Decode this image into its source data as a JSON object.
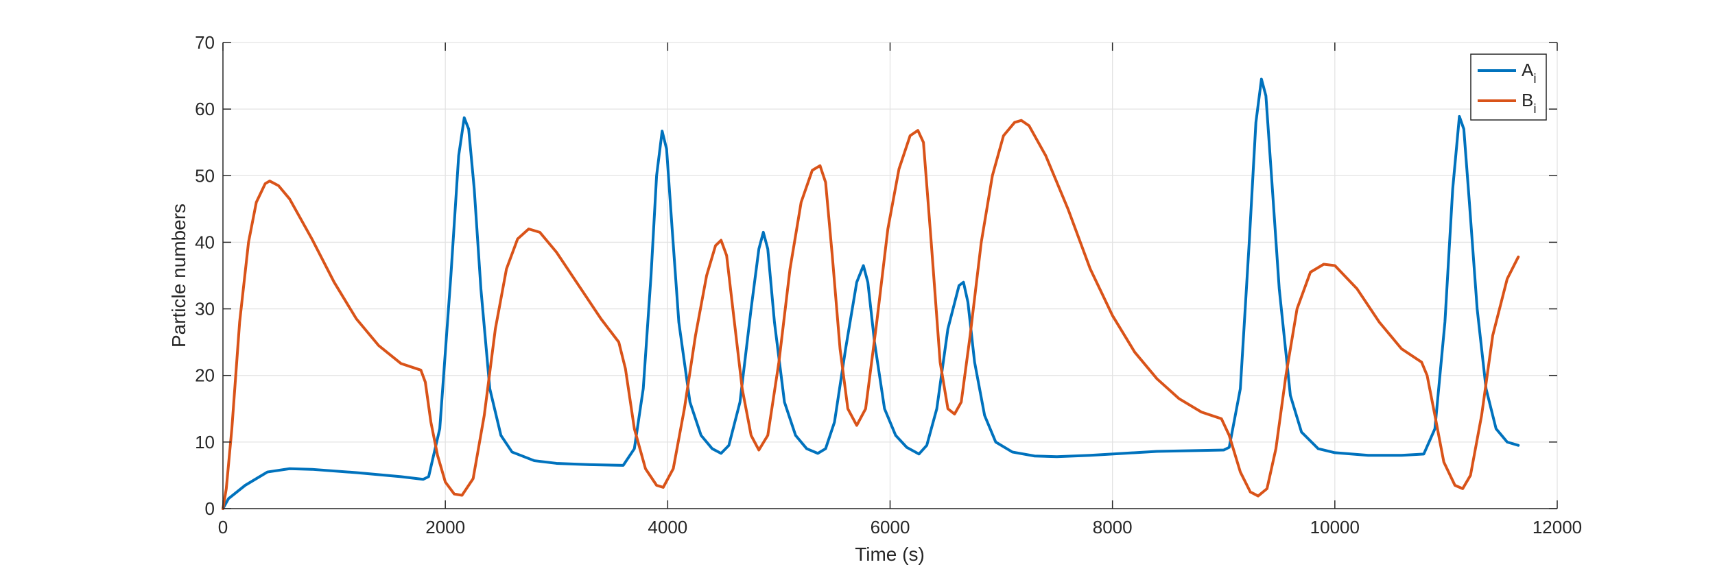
{
  "chart_data": {
    "type": "line",
    "title": "",
    "xlabel": "Time (s)",
    "ylabel": "Particle numbers",
    "xlim": [
      0,
      12000
    ],
    "ylim": [
      0,
      70
    ],
    "xticks": [
      0,
      2000,
      4000,
      6000,
      8000,
      10000,
      12000
    ],
    "yticks": [
      0,
      10,
      20,
      30,
      40,
      50,
      60,
      70
    ],
    "xtick_labels": [
      "0",
      "2000",
      "4000",
      "6000",
      "8000",
      "10000",
      "12000"
    ],
    "ytick_labels": [
      "0",
      "10",
      "20",
      "30",
      "40",
      "50",
      "60",
      "70"
    ],
    "grid": true,
    "legend_position": "top-right",
    "series": [
      {
        "name": "A",
        "name_subscript": "i",
        "color": "#0072BD",
        "points": [
          [
            0,
            0
          ],
          [
            50,
            1.5
          ],
          [
            200,
            3.5
          ],
          [
            400,
            5.5
          ],
          [
            600,
            6
          ],
          [
            800,
            5.9
          ],
          [
            1200,
            5.4
          ],
          [
            1600,
            4.8
          ],
          [
            1800,
            4.4
          ],
          [
            1850,
            4.8
          ],
          [
            1950,
            12
          ],
          [
            2050,
            35
          ],
          [
            2120,
            53
          ],
          [
            2170,
            58.7
          ],
          [
            2210,
            57
          ],
          [
            2260,
            48
          ],
          [
            2320,
            33
          ],
          [
            2400,
            18
          ],
          [
            2500,
            11
          ],
          [
            2600,
            8.5
          ],
          [
            2800,
            7.2
          ],
          [
            3000,
            6.8
          ],
          [
            3300,
            6.6
          ],
          [
            3600,
            6.5
          ],
          [
            3700,
            9
          ],
          [
            3780,
            18
          ],
          [
            3850,
            35
          ],
          [
            3900,
            50
          ],
          [
            3950,
            56.7
          ],
          [
            3990,
            54
          ],
          [
            4040,
            42
          ],
          [
            4100,
            28
          ],
          [
            4200,
            16
          ],
          [
            4300,
            11
          ],
          [
            4400,
            9
          ],
          [
            4480,
            8.3
          ],
          [
            4550,
            9.5
          ],
          [
            4650,
            16
          ],
          [
            4750,
            30
          ],
          [
            4820,
            39
          ],
          [
            4860,
            41.5
          ],
          [
            4900,
            39
          ],
          [
            4960,
            28
          ],
          [
            5050,
            16
          ],
          [
            5150,
            11
          ],
          [
            5250,
            9
          ],
          [
            5350,
            8.3
          ],
          [
            5420,
            9
          ],
          [
            5500,
            13
          ],
          [
            5600,
            24
          ],
          [
            5700,
            34
          ],
          [
            5760,
            36.5
          ],
          [
            5800,
            34
          ],
          [
            5860,
            25
          ],
          [
            5950,
            15
          ],
          [
            6050,
            11
          ],
          [
            6150,
            9.2
          ],
          [
            6260,
            8.2
          ],
          [
            6330,
            9.5
          ],
          [
            6420,
            15
          ],
          [
            6520,
            27
          ],
          [
            6620,
            33.5
          ],
          [
            6660,
            34
          ],
          [
            6700,
            31
          ],
          [
            6760,
            22
          ],
          [
            6850,
            14
          ],
          [
            6950,
            10
          ],
          [
            7100,
            8.5
          ],
          [
            7300,
            7.9
          ],
          [
            7500,
            7.8
          ],
          [
            7800,
            8
          ],
          [
            8100,
            8.3
          ],
          [
            8400,
            8.6
          ],
          [
            8700,
            8.7
          ],
          [
            9000,
            8.8
          ],
          [
            9050,
            9.2
          ],
          [
            9150,
            18
          ],
          [
            9230,
            40
          ],
          [
            9290,
            58
          ],
          [
            9340,
            64.5
          ],
          [
            9380,
            62
          ],
          [
            9430,
            50
          ],
          [
            9500,
            33
          ],
          [
            9600,
            17
          ],
          [
            9700,
            11.5
          ],
          [
            9850,
            9
          ],
          [
            10000,
            8.4
          ],
          [
            10300,
            8
          ],
          [
            10600,
            8
          ],
          [
            10800,
            8.2
          ],
          [
            10900,
            12
          ],
          [
            10990,
            28
          ],
          [
            11060,
            48
          ],
          [
            11120,
            58.9
          ],
          [
            11160,
            57
          ],
          [
            11210,
            46
          ],
          [
            11280,
            30
          ],
          [
            11360,
            18
          ],
          [
            11450,
            12
          ],
          [
            11550,
            10
          ],
          [
            11650,
            9.5
          ]
        ]
      },
      {
        "name": "B",
        "name_subscript": "i",
        "color": "#D95319",
        "points": [
          [
            0,
            0
          ],
          [
            30,
            3
          ],
          [
            80,
            12
          ],
          [
            150,
            28
          ],
          [
            230,
            40
          ],
          [
            300,
            46
          ],
          [
            380,
            48.8
          ],
          [
            420,
            49.2
          ],
          [
            500,
            48.5
          ],
          [
            600,
            46.5
          ],
          [
            800,
            40.5
          ],
          [
            1000,
            34
          ],
          [
            1200,
            28.5
          ],
          [
            1400,
            24.5
          ],
          [
            1600,
            21.8
          ],
          [
            1780,
            20.8
          ],
          [
            1820,
            19
          ],
          [
            1870,
            13
          ],
          [
            1930,
            8
          ],
          [
            2000,
            4
          ],
          [
            2080,
            2.2
          ],
          [
            2150,
            2
          ],
          [
            2250,
            4.5
          ],
          [
            2350,
            14
          ],
          [
            2450,
            27
          ],
          [
            2550,
            36
          ],
          [
            2650,
            40.5
          ],
          [
            2750,
            42
          ],
          [
            2850,
            41.5
          ],
          [
            3000,
            38.5
          ],
          [
            3200,
            33.5
          ],
          [
            3400,
            28.5
          ],
          [
            3560,
            25
          ],
          [
            3620,
            21
          ],
          [
            3700,
            12
          ],
          [
            3800,
            6
          ],
          [
            3900,
            3.5
          ],
          [
            3960,
            3.2
          ],
          [
            4050,
            6
          ],
          [
            4150,
            15
          ],
          [
            4250,
            26
          ],
          [
            4350,
            35
          ],
          [
            4430,
            39.5
          ],
          [
            4480,
            40.3
          ],
          [
            4530,
            38
          ],
          [
            4600,
            28
          ],
          [
            4670,
            18
          ],
          [
            4750,
            11
          ],
          [
            4820,
            8.8
          ],
          [
            4900,
            11
          ],
          [
            5000,
            22
          ],
          [
            5100,
            36
          ],
          [
            5200,
            46
          ],
          [
            5300,
            50.8
          ],
          [
            5370,
            51.5
          ],
          [
            5420,
            49
          ],
          [
            5480,
            38
          ],
          [
            5550,
            24
          ],
          [
            5620,
            15
          ],
          [
            5700,
            12.5
          ],
          [
            5780,
            15
          ],
          [
            5880,
            28
          ],
          [
            5980,
            42
          ],
          [
            6080,
            51
          ],
          [
            6180,
            56
          ],
          [
            6250,
            56.8
          ],
          [
            6300,
            55
          ],
          [
            6370,
            40
          ],
          [
            6450,
            22
          ],
          [
            6520,
            15
          ],
          [
            6580,
            14.2
          ],
          [
            6640,
            16
          ],
          [
            6720,
            26
          ],
          [
            6820,
            40
          ],
          [
            6920,
            50
          ],
          [
            7020,
            56
          ],
          [
            7120,
            58
          ],
          [
            7180,
            58.3
          ],
          [
            7250,
            57.5
          ],
          [
            7400,
            53
          ],
          [
            7600,
            45
          ],
          [
            7800,
            36
          ],
          [
            8000,
            29
          ],
          [
            8200,
            23.5
          ],
          [
            8400,
            19.5
          ],
          [
            8600,
            16.5
          ],
          [
            8800,
            14.5
          ],
          [
            8980,
            13.5
          ],
          [
            9050,
            11
          ],
          [
            9150,
            5.5
          ],
          [
            9240,
            2.5
          ],
          [
            9310,
            1.9
          ],
          [
            9390,
            3
          ],
          [
            9470,
            9
          ],
          [
            9560,
            20
          ],
          [
            9660,
            30
          ],
          [
            9780,
            35.5
          ],
          [
            9900,
            36.7
          ],
          [
            10000,
            36.5
          ],
          [
            10200,
            33
          ],
          [
            10400,
            28
          ],
          [
            10600,
            24
          ],
          [
            10780,
            22
          ],
          [
            10830,
            20
          ],
          [
            10900,
            14
          ],
          [
            10980,
            7
          ],
          [
            11080,
            3.5
          ],
          [
            11150,
            3
          ],
          [
            11220,
            5
          ],
          [
            11320,
            14
          ],
          [
            11420,
            26
          ],
          [
            11550,
            34.5
          ],
          [
            11650,
            37.8
          ]
        ]
      }
    ]
  }
}
